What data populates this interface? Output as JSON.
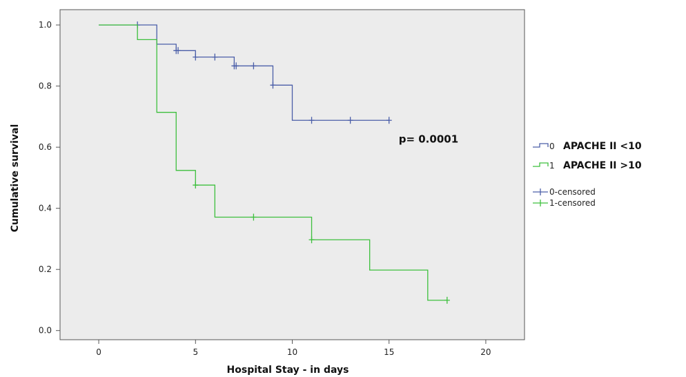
{
  "chart_data": {
    "type": "line",
    "xlabel": "Hospital Stay - in days",
    "ylabel": "Cumulative survival",
    "xlim": [
      -2,
      22
    ],
    "ylim": [
      -0.03,
      1.05
    ],
    "xticks": [
      0,
      5,
      10,
      15,
      20
    ],
    "yticks": [
      0.0,
      0.2,
      0.4,
      0.6,
      0.8,
      1.0
    ],
    "xtick_labels": [
      "0",
      "5",
      "10",
      "15",
      "20"
    ],
    "ytick_labels": [
      "0.0",
      "0.2",
      "0.4",
      "0.6",
      "0.8",
      "1.0"
    ],
    "plot_background": "#ececec",
    "grid": false,
    "legend_position": "right",
    "annotation": {
      "text": "p= 0.0001",
      "x": 15.5,
      "y": 0.615
    },
    "series": [
      {
        "code": "0",
        "label": "APACHE II <10",
        "color": "#4a5ea8",
        "steps": [
          [
            0,
            1.0
          ],
          [
            3,
            0.937
          ],
          [
            4,
            0.916
          ],
          [
            5,
            0.895
          ],
          [
            7,
            0.866
          ],
          [
            9,
            0.803
          ],
          [
            10,
            0.688
          ],
          [
            15,
            0.688
          ]
        ],
        "censored": [
          [
            2,
            1.0
          ],
          [
            4,
            0.916
          ],
          [
            4.1,
            0.916
          ],
          [
            5,
            0.895
          ],
          [
            6,
            0.895
          ],
          [
            7,
            0.866
          ],
          [
            7.1,
            0.866
          ],
          [
            8,
            0.866
          ],
          [
            9,
            0.803
          ],
          [
            11,
            0.688
          ],
          [
            13,
            0.688
          ],
          [
            15,
            0.688
          ]
        ]
      },
      {
        "code": "1",
        "label": "APACHE II >10",
        "color": "#3cbf3c",
        "steps": [
          [
            0,
            1.0
          ],
          [
            2,
            0.952
          ],
          [
            3,
            0.714
          ],
          [
            4,
            0.524
          ],
          [
            5,
            0.476
          ],
          [
            6,
            0.371
          ],
          [
            11,
            0.297
          ],
          [
            14,
            0.198
          ],
          [
            17,
            0.099
          ],
          [
            18,
            0.099
          ]
        ],
        "censored": [
          [
            5,
            0.476
          ],
          [
            8,
            0.371
          ],
          [
            11,
            0.297
          ],
          [
            18,
            0.099
          ]
        ]
      }
    ],
    "legend_extra": [
      {
        "label": "0-censored",
        "color": "#4a5ea8"
      },
      {
        "label": "1-censored",
        "color": "#3cbf3c"
      }
    ]
  }
}
